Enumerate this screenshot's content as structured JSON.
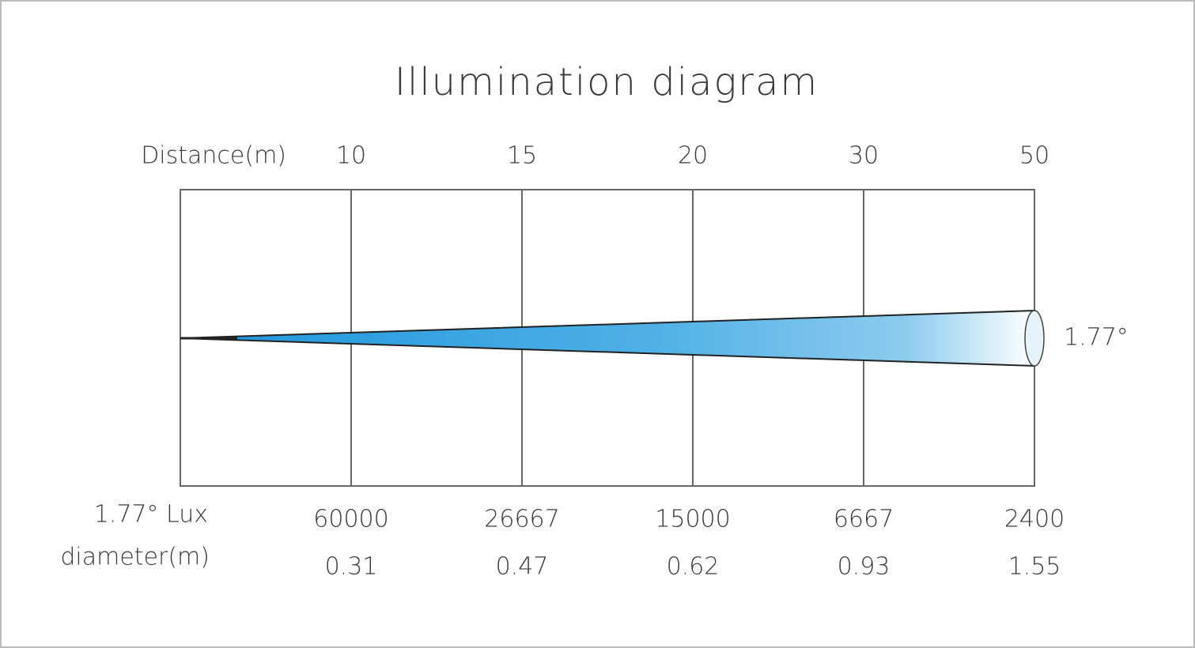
{
  "title": "Illumination diagram",
  "distance_label": "Distance(m)",
  "distances": [
    "10",
    "15",
    "20",
    "30",
    "50"
  ],
  "lux_label": "1.77° Lux",
  "lux": [
    "60000",
    "26667",
    "15000",
    "6667",
    "2400"
  ],
  "diameter_label": "diameter(m)",
  "diameters": [
    "0.31",
    "0.47",
    "0.62",
    "0.93",
    "1.55"
  ],
  "beam_angle": "1.77°"
}
